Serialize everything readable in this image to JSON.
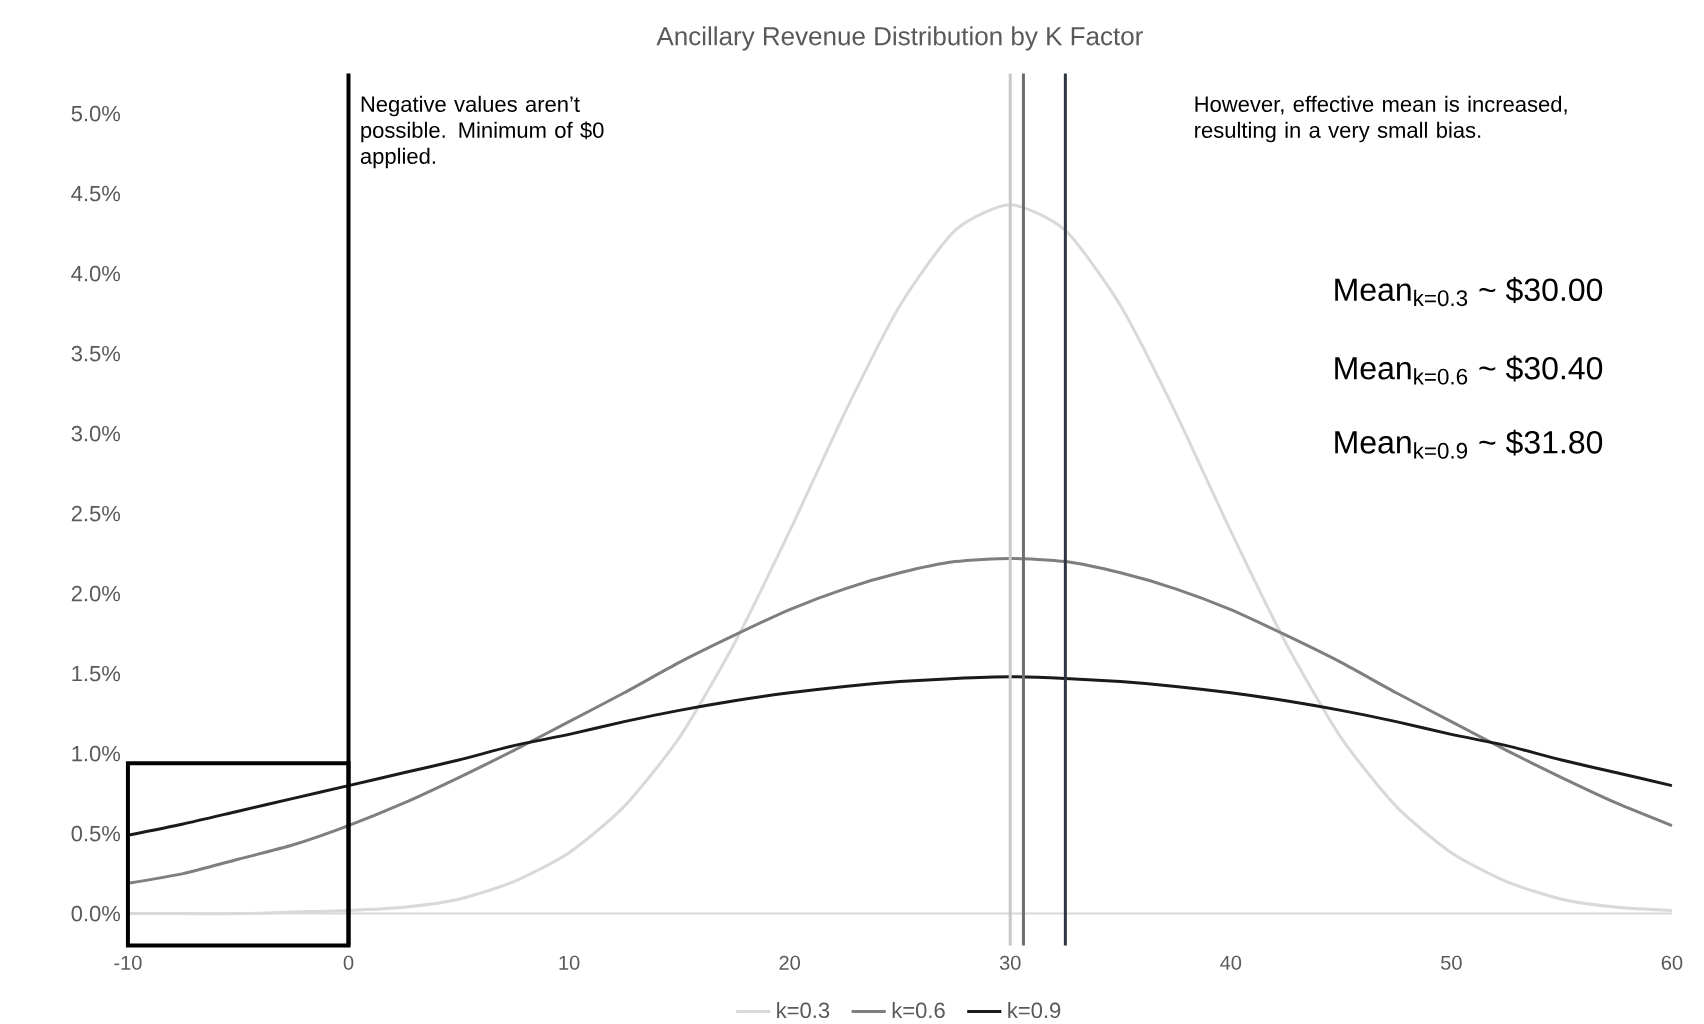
{
  "chart_data": {
    "type": "line",
    "title": "Ancillary Revenue Distribution by K Factor",
    "x": [
      -10,
      -7.5,
      -5,
      -2.5,
      0,
      2.5,
      5,
      7.5,
      10,
      12.5,
      15,
      17.5,
      20,
      22.5,
      25,
      27.5,
      30,
      32.5,
      35,
      37.5,
      40,
      42.5,
      45,
      47.5,
      50,
      52.5,
      55,
      57.5,
      60
    ],
    "series": [
      {
        "name": "k=0.3",
        "color": "#d9d9d9",
        "values": [
          0.0,
          0.0,
          0.0,
          0.01,
          0.02,
          0.04,
          0.09,
          0.2,
          0.38,
          0.67,
          1.1,
          1.69,
          2.39,
          3.13,
          3.8,
          4.27,
          4.43,
          4.27,
          3.8,
          3.13,
          2.39,
          1.69,
          1.1,
          0.67,
          0.38,
          0.2,
          0.09,
          0.04,
          0.02
        ]
      },
      {
        "name": "k=0.6",
        "color": "#7f7f7f",
        "values": [
          0.19,
          0.25,
          0.34,
          0.43,
          0.55,
          0.69,
          0.85,
          1.02,
          1.2,
          1.38,
          1.57,
          1.74,
          1.9,
          2.03,
          2.13,
          2.2,
          2.22,
          2.2,
          2.13,
          2.03,
          1.9,
          1.74,
          1.57,
          1.38,
          1.2,
          1.02,
          0.85,
          0.69,
          0.55
        ]
      },
      {
        "name": "k=0.9",
        "color": "#1a1a1a",
        "values": [
          0.49,
          0.56,
          0.64,
          0.72,
          0.8,
          0.88,
          0.96,
          1.05,
          1.12,
          1.2,
          1.27,
          1.33,
          1.38,
          1.42,
          1.45,
          1.47,
          1.48,
          1.47,
          1.45,
          1.42,
          1.38,
          1.33,
          1.27,
          1.2,
          1.12,
          1.05,
          0.96,
          0.88,
          0.8
        ]
      }
    ],
    "xlim": [
      -10,
      60
    ],
    "xticks": [
      -10,
      0,
      10,
      20,
      30,
      40,
      50,
      60
    ],
    "ylim": [
      -0.2,
      5.25
    ],
    "yticks": [
      {
        "value": 0,
        "label": "0.0%"
      },
      {
        "value": 0.5,
        "label": "0.5%"
      },
      {
        "value": 1,
        "label": "1.0%"
      },
      {
        "value": 1.5,
        "label": "1.5%"
      },
      {
        "value": 2,
        "label": "2.0%"
      },
      {
        "value": 2.5,
        "label": "2.5%"
      },
      {
        "value": 3,
        "label": "3.0%"
      },
      {
        "value": 3.5,
        "label": "3.5%"
      },
      {
        "value": 4,
        "label": "4.0%"
      },
      {
        "value": 4.5,
        "label": "4.5%"
      },
      {
        "value": 5,
        "label": "5.0%"
      }
    ],
    "ref_lines": [
      {
        "axis": "x",
        "value": 0,
        "color": "#000000"
      },
      {
        "axis": "x",
        "value": 30,
        "color": "#c8c8c8"
      },
      {
        "axis": "x",
        "value": 30.6,
        "color": "#6e6e6e"
      },
      {
        "axis": "x",
        "value": 32.5,
        "color": "#2f3542"
      }
    ],
    "annotations": [
      "Negative values aren’t possible. Minimum of $0 applied.",
      "However, effective mean is increased, resulting in a very small bias.",
      "Mean$_{k=0.3}$ ~ $30.00",
      "Mean$_{k=0.6}$ ~ $30.40",
      "Mean$_{k=0.9}$ ~ $31.80"
    ],
    "legend": "bottom",
    "marker": "none",
    "line_style": "solid",
    "grid": false
  }
}
